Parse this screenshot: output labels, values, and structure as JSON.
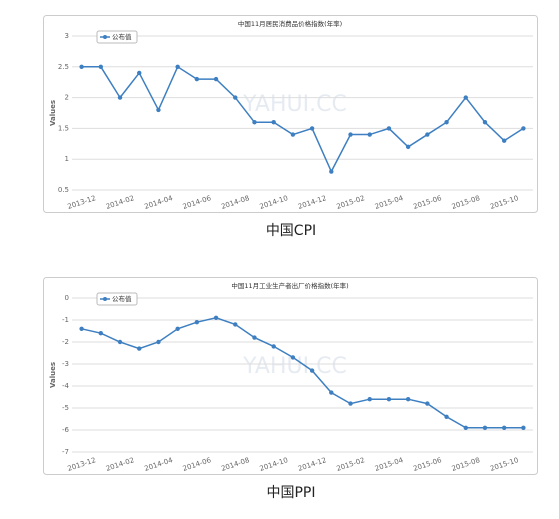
{
  "chart_data": [
    {
      "type": "line",
      "title": "中国11月居民消费品价格指数(年率)",
      "caption": "中国CPI",
      "y_label": "Values",
      "watermark": "YAHUI.CC",
      "categories": [
        "2013-12",
        null,
        "2014-02",
        null,
        "2014-04",
        null,
        "2014-06",
        null,
        "2014-08",
        null,
        "2014-10",
        null,
        "2014-12",
        null,
        "2015-02",
        null,
        "2015-04",
        null,
        "2015-06",
        null,
        "2015-08",
        null,
        "2015-10",
        null
      ],
      "series": [
        {
          "name": "公布值",
          "color": "#3d7fc1",
          "values": [
            2.5,
            2.5,
            2.0,
            2.4,
            1.8,
            2.5,
            2.3,
            2.3,
            2.0,
            1.6,
            1.6,
            1.4,
            1.5,
            0.8,
            1.4,
            1.4,
            1.5,
            1.2,
            1.4,
            1.6,
            2.0,
            1.6,
            1.3,
            1.5
          ]
        }
      ],
      "ylim": [
        0.5,
        3
      ],
      "yticks": [
        0.5,
        1,
        1.5,
        2,
        2.5,
        3
      ],
      "grid": true,
      "legend": "top-left"
    },
    {
      "type": "line",
      "title": "中国11月工业生产者出厂价格指数(年率)",
      "caption": "中国PPI",
      "y_label": "Values",
      "watermark": "YAHUI.CC",
      "categories": [
        "2013-12",
        null,
        "2014-02",
        null,
        "2014-04",
        null,
        "2014-06",
        null,
        "2014-08",
        null,
        "2014-10",
        null,
        "2014-12",
        null,
        "2015-02",
        null,
        "2015-04",
        null,
        "2015-06",
        null,
        "2015-08",
        null,
        "2015-10",
        null
      ],
      "series": [
        {
          "name": "公布值",
          "color": "#3d7fc1",
          "values": [
            -1.4,
            -1.6,
            -2.0,
            -2.3,
            -2.0,
            -1.4,
            -1.1,
            -0.9,
            -1.2,
            -1.8,
            -2.2,
            -2.7,
            -3.3,
            -4.3,
            -4.8,
            -4.6,
            -4.6,
            -4.6,
            -4.8,
            -5.4,
            -5.9,
            -5.9,
            -5.9,
            -5.9
          ]
        }
      ],
      "ylim": [
        -7,
        0
      ],
      "yticks": [
        -7,
        -6,
        -5,
        -4,
        -3,
        -2,
        -1,
        0
      ],
      "grid": true,
      "legend": "top-left"
    }
  ]
}
